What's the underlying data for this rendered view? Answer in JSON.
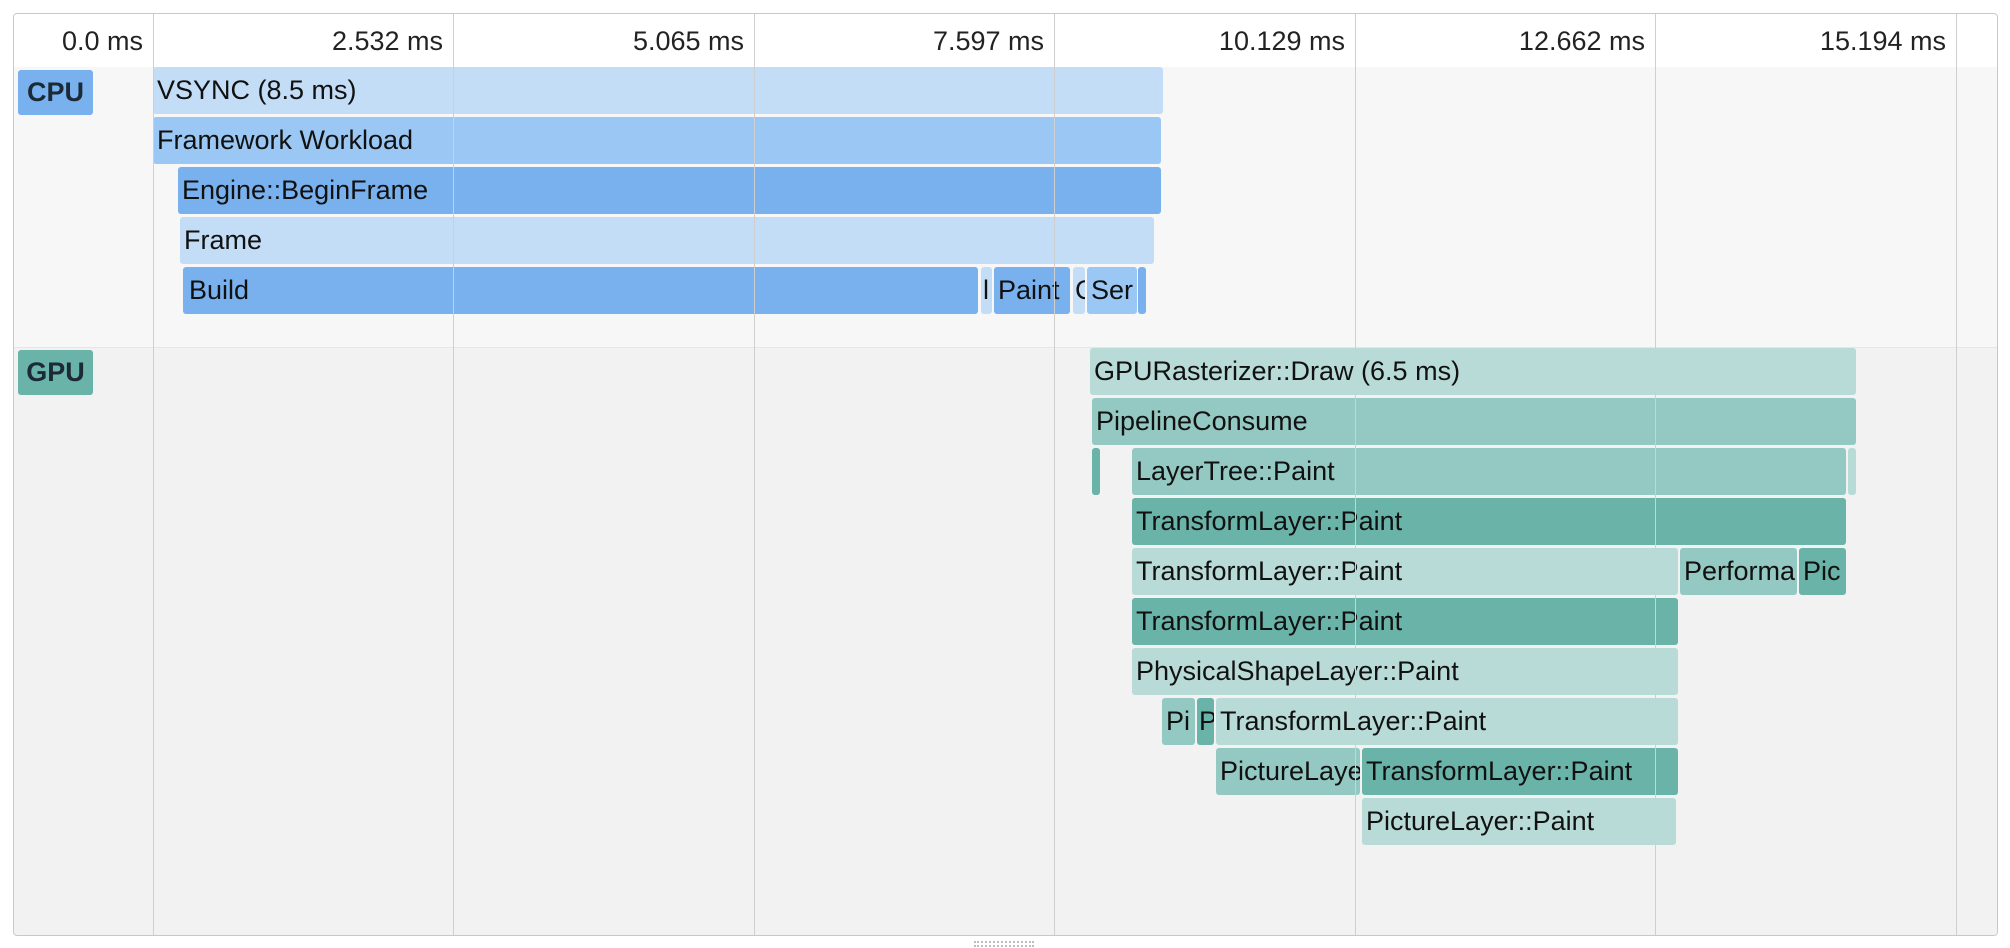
{
  "ruler": {
    "ticks": [
      "0.0 ms",
      "2.532 ms",
      "5.065 ms",
      "7.597 ms",
      "10.129 ms",
      "12.662 ms",
      "15.194 ms"
    ]
  },
  "lanes": {
    "cpu_label": "CPU",
    "gpu_label": "GPU"
  },
  "colors": {
    "cpu_light": "#c3ddf7",
    "cpu_mid": "#9ac7f3",
    "cpu_dark": "#78b1ee",
    "gpu_light": "#b8dbd8",
    "gpu_mid": "#93c9c2",
    "gpu_dark": "#69b3a9"
  },
  "cpu_events": {
    "vsync": "VSYNC (8.5 ms)",
    "framework_workload": "Framework Workload",
    "begin_frame": "Engine::BeginFrame",
    "frame": "Frame",
    "build": "Build",
    "layout": "l",
    "paint": "Paint",
    "compositing": "C",
    "serialize": "Ser"
  },
  "gpu_events": {
    "draw": "GPURasterizer::Draw (6.5 ms)",
    "pipeline_consume": "PipelineConsume",
    "layer_tree_paint": "LayerTree::Paint",
    "transform_paint_1": "TransformLayer::Paint",
    "transform_paint_2": "TransformLayer::Paint",
    "performance_overlay": "Performa",
    "picture_layer_short": "Pic",
    "transform_paint_3": "TransformLayer::Paint",
    "physical_shape_paint": "PhysicalShapeLayer::Paint",
    "picture_tiny": "Pi",
    "p_tiny": "P",
    "transform_paint_4": "TransformLayer::Paint",
    "picture_layer_trunc": "PictureLaye",
    "transform_paint_5": "TransformLayer::Paint",
    "picture_layer_paint": "PictureLayer::Paint"
  }
}
